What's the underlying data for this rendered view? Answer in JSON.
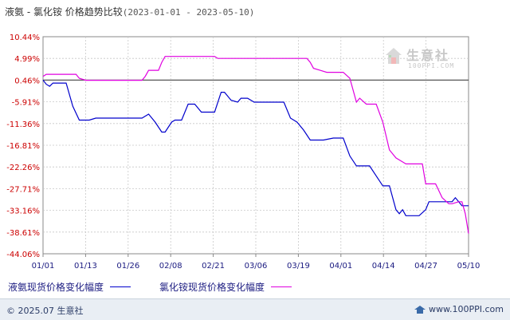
{
  "title": {
    "main": "液氨 - 氯化铵 价格趋势比较",
    "range": "(2023-01-01 - 2023-05-10)"
  },
  "watermark": {
    "cn": "生意社",
    "en": "100PPI.COM",
    "icon": "house-logo-icon"
  },
  "footer": {
    "copyright": "© 2025.07 生意社",
    "site": "www.100PPI.com",
    "icon": "site-logo-icon"
  },
  "colors": {
    "series1": "#0000cc",
    "series2": "#e000e0",
    "zero_line": "#555555",
    "axis": "#888888",
    "ytick": "#cc0000",
    "xtick": "#1a1a80",
    "grid": "#c8c8c8"
  },
  "chart_data": {
    "type": "line",
    "title": "液氨 - 氯化铵 价格趋势比较",
    "xlabel": "",
    "ylabel": "",
    "grid": true,
    "legend_position": "bottom",
    "x_ticks": [
      "01/01",
      "01/13",
      "01/26",
      "02/08",
      "02/21",
      "03/06",
      "03/19",
      "04/01",
      "04/14",
      "04/27",
      "05/10"
    ],
    "y_ticks": [
      "10.44%",
      "4.99%",
      "0.46%",
      "-5.91%",
      "-11.36%",
      "-16.81%",
      "-22.26%",
      "-27.71%",
      "-33.16%",
      "-38.61%",
      "-44.06%"
    ],
    "ylim": [
      -44.06,
      10.44
    ],
    "x_range": [
      "2023-01-01",
      "2023-05-10"
    ],
    "series": [
      {
        "name": "液氨现货价格变化幅度",
        "values": [
          [
            "2023-01-01",
            -0.46
          ],
          [
            "2023-01-02",
            -1.5
          ],
          [
            "2023-01-03",
            -2.0
          ],
          [
            "2023-01-04",
            -1.2
          ],
          [
            "2023-01-06",
            -1.2
          ],
          [
            "2023-01-08",
            -1.2
          ],
          [
            "2023-01-10",
            -7.0
          ],
          [
            "2023-01-12",
            -10.5
          ],
          [
            "2023-01-15",
            -10.5
          ],
          [
            "2023-01-17",
            -10.0
          ],
          [
            "2023-01-24",
            -10.0
          ],
          [
            "2023-01-31",
            -10.0
          ],
          [
            "2023-02-02",
            -9.0
          ],
          [
            "2023-02-04",
            -11.0
          ],
          [
            "2023-02-06",
            -13.5
          ],
          [
            "2023-02-07",
            -13.5
          ],
          [
            "2023-02-09",
            -11.0
          ],
          [
            "2023-02-10",
            -10.5
          ],
          [
            "2023-02-12",
            -10.5
          ],
          [
            "2023-02-14",
            -6.5
          ],
          [
            "2023-02-16",
            -6.5
          ],
          [
            "2023-02-18",
            -8.5
          ],
          [
            "2023-02-22",
            -8.5
          ],
          [
            "2023-02-24",
            -3.5
          ],
          [
            "2023-02-25",
            -3.5
          ],
          [
            "2023-02-27",
            -5.5
          ],
          [
            "2023-03-01",
            -6.0
          ],
          [
            "2023-03-02",
            -5.0
          ],
          [
            "2023-03-04",
            -5.0
          ],
          [
            "2023-03-06",
            -6.0
          ],
          [
            "2023-03-15",
            -6.0
          ],
          [
            "2023-03-17",
            -10.0
          ],
          [
            "2023-03-19",
            -11.0
          ],
          [
            "2023-03-21",
            -13.0
          ],
          [
            "2023-03-23",
            -15.5
          ],
          [
            "2023-03-25",
            -15.5
          ],
          [
            "2023-03-27",
            -15.5
          ],
          [
            "2023-03-30",
            -15.0
          ],
          [
            "2023-04-02",
            -15.0
          ],
          [
            "2023-04-04",
            -19.5
          ],
          [
            "2023-04-06",
            -22.0
          ],
          [
            "2023-04-10",
            -22.0
          ],
          [
            "2023-04-12",
            -24.5
          ],
          [
            "2023-04-14",
            -27.0
          ],
          [
            "2023-04-16",
            -27.0
          ],
          [
            "2023-04-18",
            -33.0
          ],
          [
            "2023-04-19",
            -34.0
          ],
          [
            "2023-04-20",
            -33.0
          ],
          [
            "2023-04-21",
            -34.5
          ],
          [
            "2023-04-25",
            -34.5
          ],
          [
            "2023-04-27",
            -33.0
          ],
          [
            "2023-04-28",
            -31.0
          ],
          [
            "2023-05-05",
            -31.0
          ],
          [
            "2023-05-06",
            -30.0
          ],
          [
            "2023-05-07",
            -31.0
          ],
          [
            "2023-05-08",
            -32.0
          ],
          [
            "2023-05-10",
            -32.0
          ]
        ]
      },
      {
        "name": "氯化铵现货价格变化幅度",
        "values": [
          [
            "2023-01-01",
            0.46
          ],
          [
            "2023-01-02",
            1.0
          ],
          [
            "2023-01-11",
            1.0
          ],
          [
            "2023-01-12",
            0.0
          ],
          [
            "2023-01-14",
            -0.5
          ],
          [
            "2023-01-31",
            -0.5
          ],
          [
            "2023-02-01",
            0.5
          ],
          [
            "2023-02-02",
            2.0
          ],
          [
            "2023-02-05",
            2.0
          ],
          [
            "2023-02-06",
            4.0
          ],
          [
            "2023-02-07",
            5.5
          ],
          [
            "2023-02-22",
            5.5
          ],
          [
            "2023-02-23",
            5.0
          ],
          [
            "2023-03-22",
            5.0
          ],
          [
            "2023-03-23",
            4.0
          ],
          [
            "2023-03-24",
            2.5
          ],
          [
            "2023-03-26",
            2.0
          ],
          [
            "2023-03-28",
            1.5
          ],
          [
            "2023-04-02",
            1.5
          ],
          [
            "2023-04-04",
            0.0
          ],
          [
            "2023-04-06",
            -6.0
          ],
          [
            "2023-04-07",
            -5.0
          ],
          [
            "2023-04-09",
            -6.5
          ],
          [
            "2023-04-12",
            -6.5
          ],
          [
            "2023-04-14",
            -11.0
          ],
          [
            "2023-04-16",
            -18.0
          ],
          [
            "2023-04-18",
            -20.0
          ],
          [
            "2023-04-20",
            -21.0
          ],
          [
            "2023-04-21",
            -21.5
          ],
          [
            "2023-04-26",
            -21.5
          ],
          [
            "2023-04-27",
            -26.5
          ],
          [
            "2023-04-30",
            -26.5
          ],
          [
            "2023-05-02",
            -30.0
          ],
          [
            "2023-05-04",
            -31.5
          ],
          [
            "2023-05-05",
            -31.5
          ],
          [
            "2023-05-07",
            -31.0
          ],
          [
            "2023-05-08",
            -31.0
          ],
          [
            "2023-05-09",
            -34.0
          ],
          [
            "2023-05-10",
            -39.0
          ]
        ]
      }
    ]
  }
}
